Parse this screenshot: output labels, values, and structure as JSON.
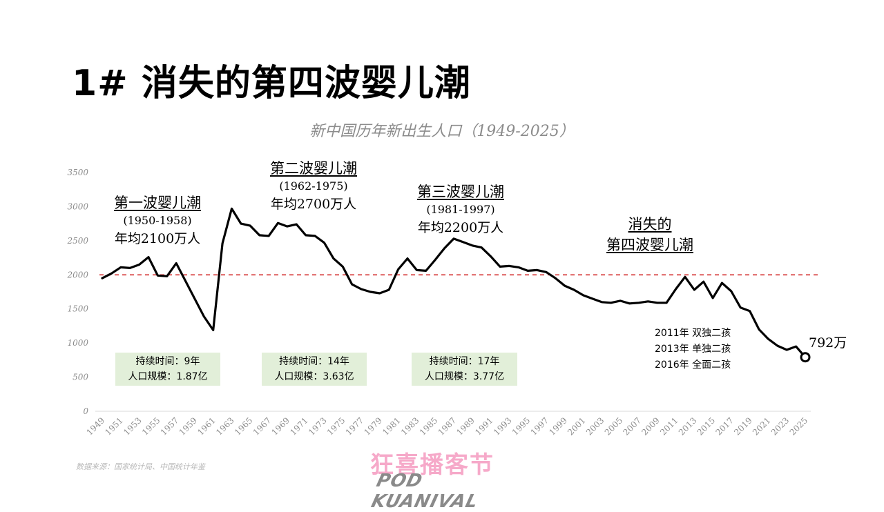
{
  "slide": {
    "title": "1# 消失的第四波婴儿潮"
  },
  "chart_data": {
    "type": "line",
    "title": "新中国历年新出生人口（1949-2025）",
    "xlabel": "",
    "ylabel": "",
    "ylim": [
      0,
      3500
    ],
    "yticks": [
      0,
      500,
      1000,
      1500,
      2000,
      2500,
      3000,
      3500
    ],
    "xtick_labels": [
      "1949",
      "1951",
      "1953",
      "1955",
      "1957",
      "1959",
      "1961",
      "1963",
      "1965",
      "1967",
      "1969",
      "1971",
      "1973",
      "1975",
      "1977",
      "1979",
      "1981",
      "1983",
      "1985",
      "1987",
      "1989",
      "1991",
      "1993",
      "1995",
      "1997",
      "1999",
      "2001",
      "2003",
      "2005",
      "2007",
      "2009",
      "2011",
      "2013",
      "2015",
      "2017",
      "2019",
      "2021",
      "2023",
      "2025"
    ],
    "grid": false,
    "reference_line": {
      "y": 2000,
      "style": "dashed",
      "color": "#d32f2f"
    },
    "series": [
      {
        "color": "#000000",
        "x": [
          1949,
          1950,
          1951,
          1952,
          1953,
          1954,
          1955,
          1956,
          1957,
          1958,
          1959,
          1960,
          1961,
          1962,
          1963,
          1964,
          1965,
          1966,
          1967,
          1968,
          1969,
          1970,
          1971,
          1972,
          1973,
          1974,
          1975,
          1976,
          1977,
          1978,
          1979,
          1980,
          1981,
          1982,
          1983,
          1984,
          1985,
          1986,
          1987,
          1988,
          1989,
          1990,
          1991,
          1992,
          1993,
          1994,
          1995,
          1996,
          1997,
          1998,
          1999,
          2000,
          2001,
          2002,
          2003,
          2004,
          2005,
          2006,
          2007,
          2008,
          2009,
          2010,
          2011,
          2012,
          2013,
          2014,
          2015,
          2016,
          2017,
          2018,
          2019,
          2020,
          2021,
          2022,
          2023,
          2024,
          2025
        ],
        "values": [
          1950,
          2020,
          2110,
          2100,
          2150,
          2260,
          1990,
          1980,
          2170,
          1910,
          1650,
          1390,
          1190,
          2460,
          2970,
          2750,
          2720,
          2580,
          2570,
          2760,
          2710,
          2740,
          2580,
          2570,
          2470,
          2240,
          2120,
          1860,
          1790,
          1750,
          1730,
          1780,
          2080,
          2240,
          2070,
          2060,
          2220,
          2390,
          2530,
          2480,
          2430,
          2400,
          2270,
          2120,
          2130,
          2110,
          2060,
          2070,
          2040,
          1950,
          1840,
          1780,
          1700,
          1650,
          1600,
          1590,
          1620,
          1580,
          1590,
          1610,
          1590,
          1590,
          1790,
          1970,
          1780,
          1900,
          1660,
          1880,
          1760,
          1520,
          1470,
          1200,
          1060,
          960,
          900,
          950,
          792
        ]
      }
    ],
    "annotations": [
      {
        "heading": "第一波婴儿潮",
        "period": "(1950-1958)",
        "avg": "年均2100万人"
      },
      {
        "heading": "第二波婴儿潮",
        "period": "(1962-1975)",
        "avg": "年均2700万人"
      },
      {
        "heading": "第三波婴儿潮",
        "period": "(1981-1997)",
        "avg": "年均2200万人"
      },
      {
        "heading_line1": "消失的",
        "heading_line2": "第四波婴儿潮"
      }
    ],
    "boxes": [
      {
        "duration": "持续时间：9年",
        "scale": "人口规模：1.87亿"
      },
      {
        "duration": "持续时间：14年",
        "scale": "人口规模：3.63亿"
      },
      {
        "duration": "持续时间：17年",
        "scale": "人口规模：3.77亿"
      }
    ],
    "policy_notes": [
      "2011年  双独二孩",
      "2013年  单独二孩",
      "2016年  全面二孩"
    ],
    "last_point_label": "792万"
  },
  "footer": {
    "source": "数据来源：国家统计局、中国统计年鉴",
    "logo_cn": "狂喜播客节",
    "logo_en": "POD KUANIVAL"
  }
}
